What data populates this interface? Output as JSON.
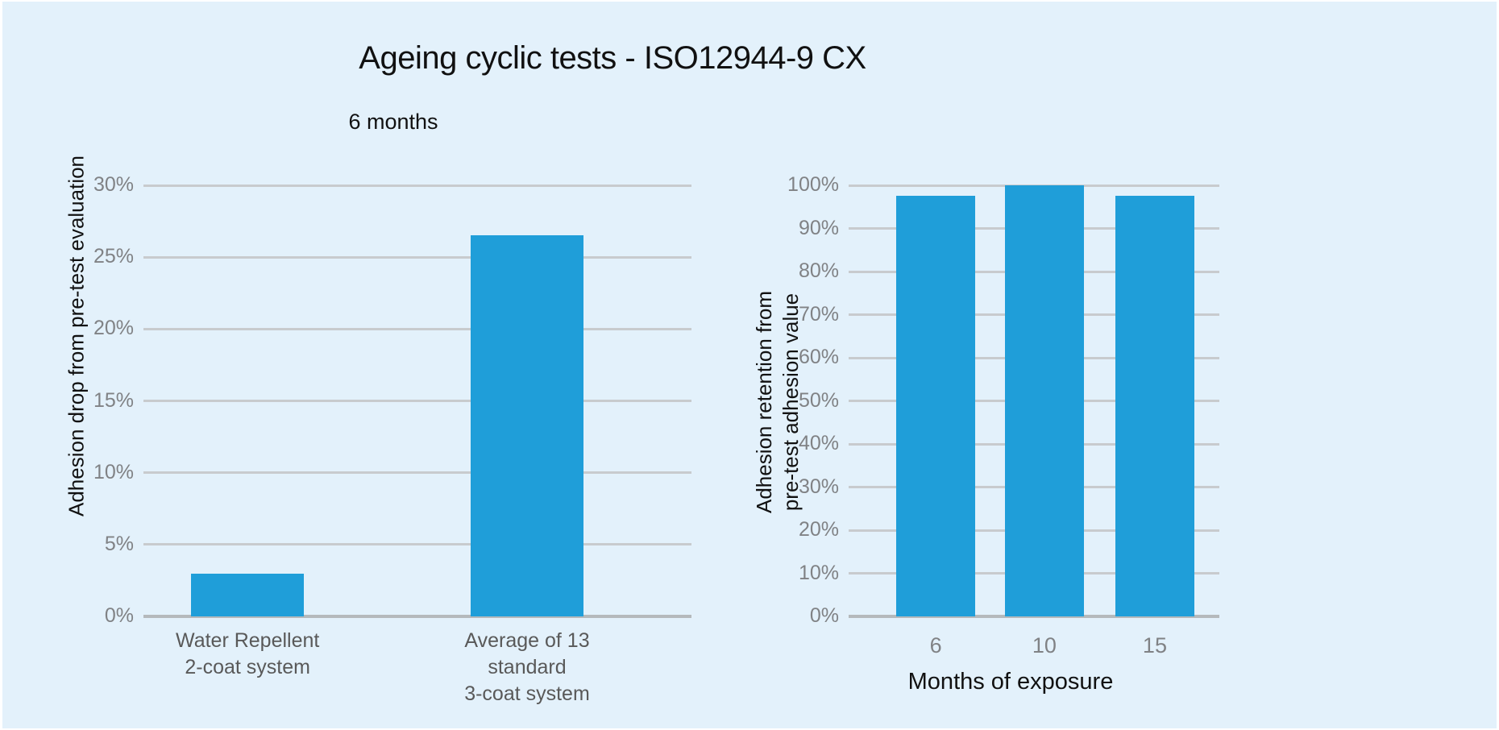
{
  "page": {
    "title": "Ageing cyclic tests - ISO12944-9 CX",
    "background": "#e3f1fb"
  },
  "colors": {
    "bar": "#1f9ed9",
    "gridline": "#c8cbce",
    "axis_line": "#b5b9bc",
    "tick_label": "#808285",
    "category_label": "#595959",
    "heading_text": "#111111"
  },
  "chart_data": [
    {
      "id": "left-chart",
      "type": "bar",
      "title": "6 months",
      "ylabel": "Adhesion drop from pre-test evaluation",
      "xlabel": "",
      "categories": [
        "Water Repellent\n2-coat system",
        "Average of 13 standard\n3-coat system"
      ],
      "values": [
        3,
        26.5
      ],
      "value_labels": [
        "3%",
        "26.5%"
      ],
      "ylim": [
        0,
        30
      ],
      "ytick_step": 5,
      "ytick_labels": [
        "0%",
        "5%",
        "10%",
        "15%",
        "20%",
        "25%",
        "30%"
      ],
      "grid": true,
      "legend": false
    },
    {
      "id": "right-chart",
      "type": "bar",
      "title": "",
      "ylabel": "Adhesion retention from\npre-test adhesion value",
      "xlabel": "Months of exposure",
      "categories": [
        "6",
        "10",
        "15"
      ],
      "values": [
        97.5,
        100,
        97.5
      ],
      "value_labels": [
        "97.5%",
        "100%",
        "97.5%"
      ],
      "ylim": [
        0,
        100
      ],
      "ytick_step": 10,
      "ytick_labels": [
        "0%",
        "10%",
        "20%",
        "30%",
        "40%",
        "50%",
        "60%",
        "70%",
        "80%",
        "90%",
        "100%"
      ],
      "grid": true,
      "legend": false
    }
  ]
}
